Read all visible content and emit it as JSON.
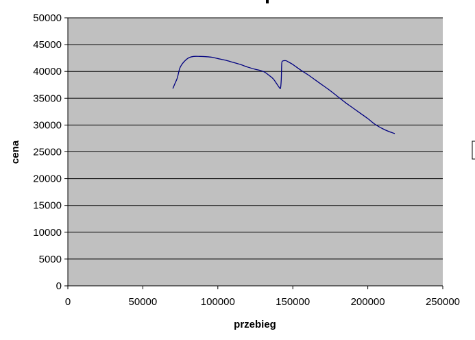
{
  "chart_data": {
    "type": "line",
    "title": "",
    "xlabel": "przebieg",
    "ylabel": "cena",
    "xlim": [
      0,
      250000
    ],
    "ylim": [
      0,
      50000
    ],
    "x_ticks": [
      0,
      50000,
      100000,
      150000,
      200000,
      250000
    ],
    "x_tick_labels": [
      "0",
      "50000",
      "100000",
      "150000",
      "200000",
      "250000"
    ],
    "y_ticks": [
      0,
      5000,
      10000,
      15000,
      20000,
      25000,
      30000,
      35000,
      40000,
      45000,
      50000
    ],
    "y_tick_labels": [
      "0",
      "5000",
      "10000",
      "15000",
      "20000",
      "25000",
      "30000",
      "35000",
      "40000",
      "45000",
      "50000"
    ],
    "grid": "horizontal",
    "legend": "none",
    "colors": {
      "plot_background": "#c0c0c0",
      "line": "#000080",
      "gridline": "#000000",
      "axis": "#000000"
    },
    "series": [
      {
        "x": [
          70000,
          71500,
          73000,
          74500,
          76000,
          78500,
          81000,
          84000,
          88000,
          92000,
          96000,
          100000,
          105000,
          110000,
          115000,
          120000,
          125000,
          128000,
          131000,
          134000,
          137000,
          139500,
          141000,
          141800,
          142300,
          142600,
          143000,
          144000,
          145500,
          147500,
          150000,
          155000,
          160000,
          165000,
          170000,
          175000,
          180000,
          185000,
          190000,
          195000,
          200000,
          205000,
          210000,
          214000,
          218000
        ],
        "y": [
          36800,
          37800,
          38800,
          40500,
          41300,
          42100,
          42600,
          42800,
          42800,
          42750,
          42650,
          42400,
          42100,
          41700,
          41300,
          40800,
          40400,
          40200,
          39900,
          39300,
          38600,
          37600,
          37000,
          36900,
          38500,
          41400,
          41900,
          42000,
          42000,
          41700,
          41300,
          40300,
          39400,
          38400,
          37400,
          36400,
          35300,
          34200,
          33200,
          32200,
          31200,
          30100,
          29300,
          28800,
          28400
        ]
      }
    ]
  }
}
